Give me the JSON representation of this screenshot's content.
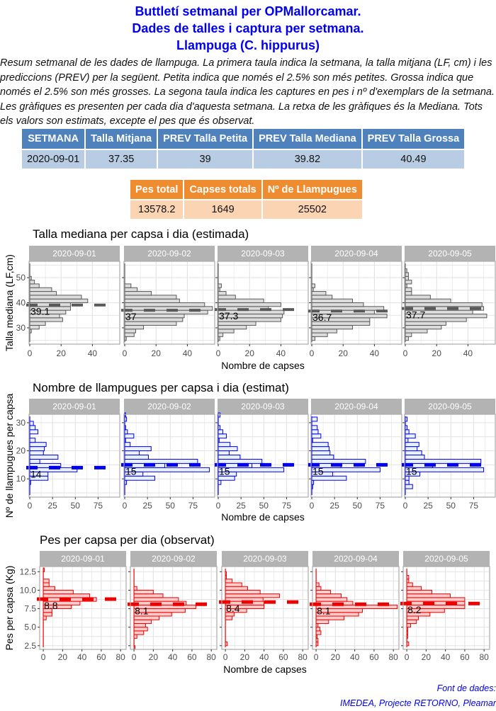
{
  "header": {
    "title_lines": [
      "Buttletí setmanal per OPMallorcamar.",
      "Dades de talles i captura per setmana.",
      "Llampuga (C. hippurus)"
    ],
    "intro": "Resum setmanal de les dades de llampuga. La primera taula indica la setmana, la talla mitjana (LF, cm) i les prediccions (PREV) per la següent. Petita indica que només el 2.5% son més petites. Grossa indica que només el 2.5% son més grosses. La segona taula indica les captures en pes i nº d'exemplars de la setmana. Les gràfiques es presenten per cada dia d'aquesta setmana. La retxa de les gràfiques és la Mediana. Tots els valors son estimats, excepte el pes que és observat."
  },
  "table1": {
    "headers": [
      "SETMANA",
      "Talla Mitjana",
      "PREV Talla Petita",
      "PREV Talla Mediana",
      "PREV Talla Grossa"
    ],
    "row": [
      "2020-09-01",
      "37.35",
      "39",
      "39.82",
      "40.49"
    ]
  },
  "table2": {
    "headers": [
      "Pes total",
      "Capses totals",
      "Nº de Llampugues"
    ],
    "row": [
      "13578.2",
      "1649",
      "25502"
    ]
  },
  "colors": {
    "title": "#0000ee",
    "table1_header": "#4f81bd",
    "table1_cell": "#b8cce4",
    "table2_header": "#f08c30",
    "table2_cell": "#fbd4b4",
    "strip": "#b3b3b3",
    "talla_fill": "#dcdcdc",
    "talla_line": "#595959",
    "num_fill": "#e8f0fb",
    "num_line": "#0000ee",
    "pes_fill": "#ffcccc",
    "pes_line": "#ee0000"
  },
  "chart_data": [
    {
      "type": "bar",
      "orientation": "horizontal-histogram-facets",
      "title": "Talla mediana per capsa i dia (estimada)",
      "xlabel": "Nombre de capses",
      "ylabel": "Talla mediana (LF,cm)",
      "xlim": [
        0,
        57
      ],
      "xticks": [
        0,
        20,
        40
      ],
      "ylim": [
        23.5,
        56.5
      ],
      "yticks": [
        30,
        40,
        50
      ],
      "bin_start": 25,
      "bin_width": 1.5,
      "facets": [
        {
          "label": "2020-09-01",
          "median": 39.1,
          "median_label": "39.1",
          "counts": [
            0,
            0,
            1,
            6,
            10,
            21,
            19,
            23,
            26,
            26,
            37,
            33,
            17,
            14,
            6,
            3,
            1,
            0,
            0,
            0,
            0
          ]
        },
        {
          "label": "2020-09-02",
          "median": 37,
          "median_label": "37",
          "counts": [
            1,
            6,
            7,
            12,
            33,
            37,
            38,
            53,
            56,
            51,
            35,
            33,
            17,
            8,
            4,
            0,
            0,
            0,
            0,
            0,
            0
          ]
        },
        {
          "label": "2020-09-03",
          "median": 37.3,
          "median_label": "37.3",
          "counts": [
            1,
            3,
            10,
            18,
            24,
            40,
            41,
            42,
            32,
            40,
            29,
            11,
            5,
            1,
            2,
            0,
            0,
            0,
            0,
            0,
            0
          ]
        },
        {
          "label": "2020-09-04",
          "median": 36.7,
          "median_label": "36.7",
          "counts": [
            2,
            10,
            16,
            26,
            37,
            37,
            48,
            40,
            46,
            33,
            26,
            13,
            9,
            1,
            2,
            0,
            0,
            0,
            0,
            0,
            0
          ]
        },
        {
          "label": "2020-09-05",
          "median": 37.7,
          "median_label": "37.7",
          "counts": [
            2,
            4,
            14,
            23,
            26,
            39,
            52,
            43,
            50,
            49,
            29,
            16,
            4,
            4,
            1,
            4,
            2,
            2,
            1,
            0,
            0
          ]
        }
      ]
    },
    {
      "type": "bar",
      "orientation": "horizontal-histogram-facets",
      "title": "Nombre de llampugues per capsa i dia (estimat)",
      "xlabel": "Nombre de capses",
      "ylabel": "Nº de llampugues per capsa",
      "xlim": [
        0,
        98
      ],
      "xticks": [
        0,
        25,
        50,
        75
      ],
      "ylim": [
        3.5,
        33
      ],
      "yticks": [
        10,
        20,
        30
      ],
      "bin_start": 5,
      "bin_width": 1.5,
      "facets": [
        {
          "label": "2020-09-01",
          "median": 14,
          "median_label": "14",
          "counts": [
            0,
            0,
            1,
            20,
            20,
            52,
            34,
            11,
            31,
            15,
            16,
            18,
            6,
            0,
            9,
            6,
            4,
            0,
            0
          ]
        },
        {
          "label": "2020-09-02",
          "median": 15,
          "median_label": "15",
          "counts": [
            0,
            0,
            2,
            33,
            20,
            93,
            44,
            80,
            26,
            16,
            29,
            6,
            1,
            10,
            3,
            1,
            0,
            2,
            1
          ]
        },
        {
          "label": "2020-09-03",
          "median": 15,
          "median_label": "15",
          "counts": [
            0,
            0,
            3,
            18,
            20,
            72,
            37,
            48,
            24,
            12,
            21,
            13,
            1,
            9,
            5,
            2,
            0,
            0,
            2
          ]
        },
        {
          "label": "2020-09-04",
          "median": 15,
          "median_label": "15",
          "counts": [
            0,
            1,
            2,
            38,
            23,
            75,
            32,
            59,
            24,
            20,
            19,
            18,
            1,
            10,
            7,
            6,
            0,
            6,
            0
          ]
        },
        {
          "label": "2020-09-05",
          "median": 15,
          "median_label": "15",
          "counts": [
            0,
            8,
            4,
            4,
            16,
            86,
            30,
            83,
            21,
            18,
            13,
            15,
            3,
            11,
            4,
            2,
            0,
            2,
            0
          ]
        }
      ]
    },
    {
      "type": "bar",
      "orientation": "horizontal-histogram-facets",
      "title": "Pes per capsa per dia (observat)",
      "xlabel": "Nombre de capses",
      "ylabel": "Pes per capsa (Kg)",
      "xlim": [
        -3,
        85
      ],
      "xticks": [
        0,
        20,
        40,
        60,
        80
      ],
      "ylim": [
        2,
        13.2
      ],
      "yticks": [
        2.5,
        5.0,
        7.5,
        10.0,
        12.5
      ],
      "bin_start": 2.0,
      "bin_width": 0.5,
      "facets": [
        {
          "label": "2020-09-01",
          "median": 8.8,
          "median_label": "8.8",
          "counts": [
            0,
            0,
            0,
            0,
            0,
            0,
            0,
            0,
            3,
            9,
            9,
            29,
            38,
            55,
            48,
            31,
            12,
            6,
            6,
            0,
            0,
            1
          ]
        },
        {
          "label": "2020-09-02",
          "median": 8.1,
          "median_label": "8.1",
          "counts": [
            1,
            0,
            0,
            3,
            10,
            14,
            12,
            18,
            26,
            39,
            53,
            64,
            54,
            46,
            30,
            20,
            3,
            0,
            0,
            0,
            0,
            0
          ]
        },
        {
          "label": "2020-09-03",
          "median": 8.4,
          "median_label": "8.4",
          "counts": [
            0,
            2,
            0,
            0,
            0,
            0,
            0,
            0,
            7,
            9,
            22,
            40,
            40,
            39,
            56,
            36,
            23,
            17,
            7,
            1,
            1,
            0
          ]
        },
        {
          "label": "2020-09-04",
          "median": 8.1,
          "median_label": "8.1",
          "counts": [
            0,
            2,
            2,
            1,
            5,
            4,
            2,
            13,
            29,
            44,
            48,
            84,
            38,
            32,
            26,
            15,
            5,
            3,
            0,
            0,
            0,
            0
          ]
        },
        {
          "label": "2020-09-05",
          "median": 8.2,
          "median_label": "8.2",
          "counts": [
            0,
            2,
            0,
            1,
            1,
            1,
            4,
            10,
            12,
            24,
            39,
            60,
            60,
            60,
            45,
            26,
            15,
            6,
            2,
            2,
            0,
            0
          ]
        }
      ]
    }
  ],
  "footer": {
    "line1": "Font de dades:",
    "line2": "IMEDEA, Projecte RETORNO, Pleamar"
  }
}
